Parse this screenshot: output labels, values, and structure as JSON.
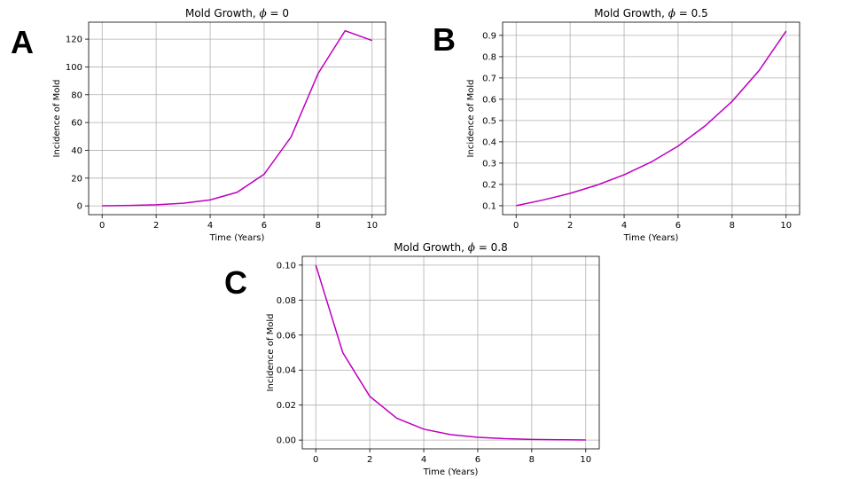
{
  "chart_data": [
    {
      "panel": "A",
      "type": "line",
      "title_prefix": "Mold Growth, ",
      "title_symbol": "ϕ",
      "title_suffix": " = 0",
      "xlabel": "Time (Years)",
      "ylabel": "Incidence of Mold",
      "xlim": [
        -0.5,
        10.5
      ],
      "ylim": [
        -6.3,
        132.2
      ],
      "xticks": [
        0,
        2,
        4,
        6,
        8,
        10
      ],
      "yticks": [
        0,
        20,
        40,
        60,
        80,
        100,
        120
      ],
      "grid": true,
      "color": "#bf00bf",
      "x": [
        0,
        1,
        2,
        3,
        4,
        5,
        6,
        7,
        8,
        9,
        10
      ],
      "y": [
        0.1,
        0.3,
        0.8,
        1.9,
        4.3,
        9.8,
        22.8,
        49.7,
        95.3,
        126.0,
        119.0
      ]
    },
    {
      "panel": "B",
      "type": "line",
      "title_prefix": "Mold Growth, ",
      "title_symbol": "ϕ",
      "title_suffix": " = 0.5",
      "xlabel": "Time (Years)",
      "ylabel": "Incidence of Mold",
      "xlim": [
        -0.5,
        10.5
      ],
      "ylim": [
        0.058,
        0.962
      ],
      "xticks": [
        0,
        2,
        4,
        6,
        8,
        10
      ],
      "yticks": [
        0.1,
        0.2,
        0.3,
        0.4,
        0.5,
        0.6,
        0.7,
        0.8,
        0.9
      ],
      "grid": true,
      "color": "#bf00bf",
      "x": [
        0,
        1,
        2,
        3,
        4,
        5,
        6,
        7,
        8,
        9,
        10
      ],
      "y": [
        0.1,
        0.127,
        0.158,
        0.197,
        0.245,
        0.305,
        0.38,
        0.475,
        0.59,
        0.735,
        0.92
      ]
    },
    {
      "panel": "C",
      "type": "line",
      "title_prefix": "Mold Growth, ",
      "title_symbol": "ϕ",
      "title_suffix": " = 0.8",
      "xlabel": "Time (Years)",
      "ylabel": "Incidence of Mold",
      "xlim": [
        -0.5,
        10.5
      ],
      "ylim": [
        -0.005,
        0.105
      ],
      "xticks": [
        0,
        2,
        4,
        6,
        8,
        10
      ],
      "yticks": [
        0.0,
        0.02,
        0.04,
        0.06,
        0.08,
        0.1
      ],
      "ytick_labels": [
        "0.00",
        "0.02",
        "0.04",
        "0.06",
        "0.08",
        "0.10"
      ],
      "grid": true,
      "color": "#bf00bf",
      "x": [
        0,
        1,
        2,
        3,
        4,
        5,
        6,
        7,
        8,
        9,
        10
      ],
      "y": [
        0.1,
        0.05,
        0.025,
        0.0125,
        0.00625,
        0.0031,
        0.0016,
        0.0008,
        0.0004,
        0.0002,
        0.0001
      ]
    }
  ]
}
